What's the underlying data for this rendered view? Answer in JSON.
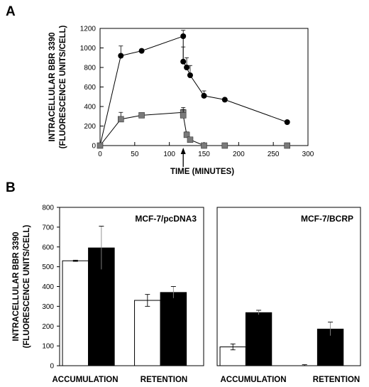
{
  "chart_data": [
    {
      "panel": "A",
      "type": "line",
      "ylabel_line1": "INTRACELLULAR BBR 3390",
      "ylabel_line2": "(FLUORESCENCE UNITS/CELL)",
      "xlabel": "TIME (MINUTES)",
      "xlim": [
        0,
        300
      ],
      "ylim": [
        0,
        1200
      ],
      "xticks": [
        0,
        50,
        100,
        150,
        200,
        250,
        300
      ],
      "yticks": [
        0,
        200,
        400,
        600,
        800,
        1000,
        1200
      ],
      "arrow_at_x": 120,
      "series": [
        {
          "marker": "circle",
          "color": "#000000",
          "x": [
            0,
            30,
            60,
            120,
            120,
            125,
            130,
            150,
            180,
            270
          ],
          "y": [
            0,
            920,
            970,
            1120,
            860,
            800,
            720,
            510,
            470,
            240
          ],
          "err": [
            0,
            100,
            0,
            60,
            150,
            100,
            100,
            50,
            0,
            0
          ]
        },
        {
          "marker": "square",
          "color": "#7a7a7a",
          "x": [
            0,
            30,
            60,
            120,
            120,
            125,
            130,
            150,
            180,
            270
          ],
          "y": [
            0,
            270,
            310,
            340,
            310,
            110,
            60,
            0,
            0,
            0
          ],
          "err": [
            0,
            70,
            0,
            50,
            60,
            30,
            0,
            0,
            0,
            0
          ]
        }
      ]
    },
    {
      "panel": "B",
      "subpanel": "MCF-7/pcDNA3",
      "type": "bar",
      "ylabel_line1": "INTRACELLULAR BBR 3390",
      "ylabel_line2": "(FLUORESCENCE UNITS/CELL)",
      "ylim": [
        0,
        800
      ],
      "yticks": [
        0,
        100,
        200,
        300,
        400,
        500,
        600,
        700,
        800
      ],
      "categories": [
        "ACCUMULATION",
        "RETENTION"
      ],
      "series": [
        {
          "fill": "#ffffff",
          "values": [
            530,
            330
          ],
          "err": [
            3,
            30
          ]
        },
        {
          "fill": "#000000",
          "values": [
            595,
            370
          ],
          "err": [
            110,
            30
          ]
        }
      ]
    },
    {
      "panel": "B",
      "subpanel": "MCF-7/BCRP",
      "type": "bar",
      "ylim": [
        0,
        800
      ],
      "categories": [
        "ACCUMULATION",
        "RETENTION"
      ],
      "series": [
        {
          "fill": "#ffffff",
          "values": [
            95,
            0
          ],
          "err": [
            15,
            5
          ]
        },
        {
          "fill": "#000000",
          "values": [
            268,
            185
          ],
          "err": [
            12,
            35
          ]
        }
      ]
    }
  ]
}
